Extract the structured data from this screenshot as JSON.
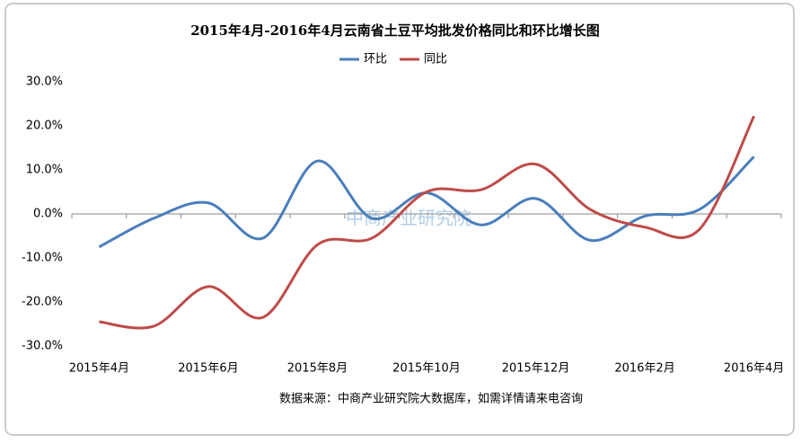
{
  "chart_data": {
    "type": "line",
    "title": "2015年4月-2016年4月云南省土豆平均批发价格同比和环比增长图",
    "categories": [
      "2015年4月",
      null,
      "2015年6月",
      null,
      "2015年8月",
      null,
      "2015年10月",
      null,
      "2015年12月",
      null,
      "2016年2月",
      null,
      "2016年4月"
    ],
    "series": [
      {
        "name": "环比",
        "color": "#4a7ebb",
        "values": [
          -7.5,
          -1,
          2.5,
          -5.5,
          12,
          -1,
          4.8,
          -2.5,
          3.5,
          -6,
          -0.5,
          1,
          13
        ]
      },
      {
        "name": "同比",
        "color": "#be4b48",
        "values": [
          -24.5,
          -25.5,
          -16.5,
          -23.5,
          -7,
          -5.5,
          5,
          5.5,
          11.3,
          1,
          -3,
          -3.5,
          22.2
        ]
      }
    ],
    "ylim": [
      -30,
      30
    ],
    "yticks": [
      {
        "value": -30,
        "label": "-30.0%"
      },
      {
        "value": -20,
        "label": "-20.0%"
      },
      {
        "value": -10,
        "label": "-10.0%"
      },
      {
        "value": 0,
        "label": "0.0%"
      },
      {
        "value": 10,
        "label": "10.0%"
      },
      {
        "value": 20,
        "label": "20.0%"
      },
      {
        "value": 30,
        "label": "30.0%"
      }
    ],
    "legend": "top",
    "watermark": "中商产业研究院",
    "source": "数据来源：中商产业研究院大数据库，如需详情请来电咨询"
  }
}
